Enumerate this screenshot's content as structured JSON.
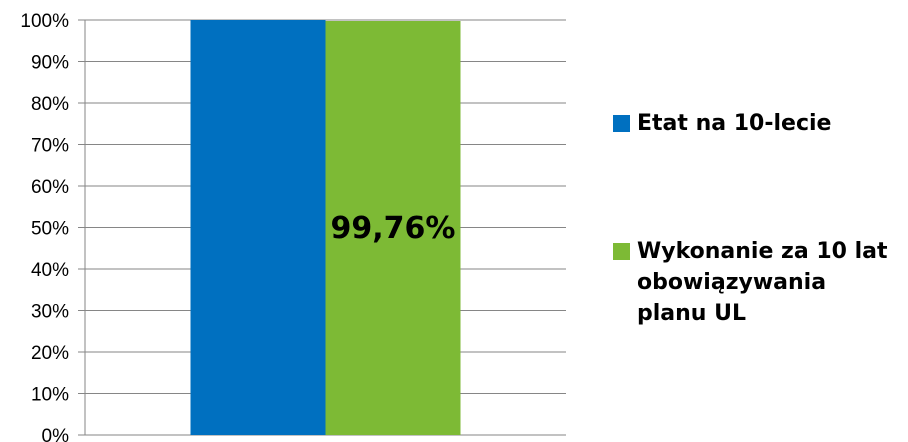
{
  "chart_data": {
    "type": "bar",
    "categories": [
      ""
    ],
    "series": [
      {
        "name": "Etat na 10-lecie",
        "values": [
          100
        ],
        "color": "#0070C0"
      },
      {
        "name": "Wykonanie za 10 lat\nobowiązywania\nplanu UL",
        "values": [
          99.76
        ],
        "color": "#7DBA35",
        "data_label": "99,76%"
      }
    ],
    "ylim": [
      0,
      100
    ],
    "yticks": [
      "0%",
      "10%",
      "20%",
      "30%",
      "40%",
      "50%",
      "60%",
      "70%",
      "80%",
      "90%",
      "100%"
    ],
    "grid": true,
    "legend_position": "right",
    "xlabel": "",
    "ylabel": ""
  }
}
